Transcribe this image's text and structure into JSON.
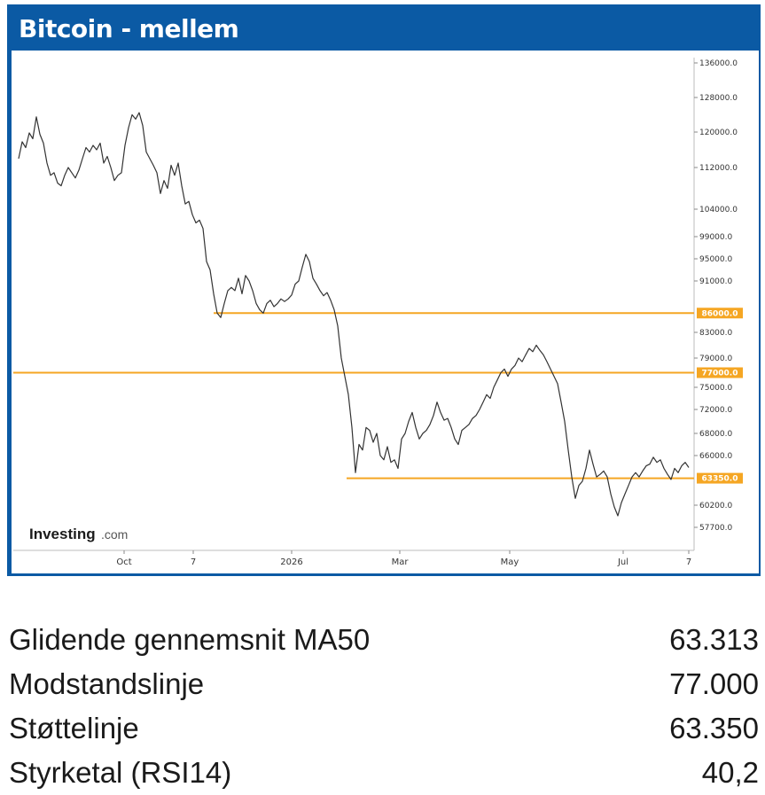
{
  "panel": {
    "title": "Bitcoin - mellem"
  },
  "brand": {
    "name": "Investing",
    "suffix": ".com"
  },
  "chart_data": {
    "type": "line",
    "title": "Bitcoin - mellem",
    "xlabel": "",
    "ylabel": "",
    "x_ticks": [
      "Oct",
      "7",
      "2026",
      "Mar",
      "May",
      "Jul",
      "7"
    ],
    "y_ticks": [
      136000,
      128000,
      120000,
      112000,
      104000,
      99000,
      95000,
      91000,
      83000,
      79000,
      75000,
      72000,
      68000,
      66000,
      60200,
      57700
    ],
    "y_tick_labels": [
      "136000.0",
      "128000.0",
      "120000.0",
      "112000.0",
      "104000.0",
      "99000.0",
      "95000.0",
      "91000.0",
      "83000.0",
      "79000.0",
      "75000.0",
      "72000.0",
      "68000.0",
      "66000.0",
      "60200.0",
      "57700.0"
    ],
    "levels": [
      {
        "value": 86000,
        "label": "86000.0",
        "color": "#f5a623"
      },
      {
        "value": 77000,
        "label": "77000.0",
        "color": "#f5a623"
      },
      {
        "value": 63350,
        "label": "63350.0",
        "color": "#f5a623"
      }
    ],
    "series": [
      {
        "color": "#333333",
        "values": [
          114000,
          117800,
          116500,
          119800,
          118500,
          123500,
          119500,
          117500,
          113000,
          110500,
          111000,
          109000,
          108500,
          110500,
          112000,
          111000,
          110000,
          111500,
          114000,
          116500,
          115500,
          117000,
          116000,
          117500,
          113000,
          114500,
          112000,
          109500,
          110500,
          111000,
          117000,
          121000,
          124000,
          123000,
          124500,
          121500,
          115500,
          114000,
          112500,
          111000,
          107000,
          109500,
          108000,
          112500,
          110500,
          113000,
          108500,
          105000,
          105500,
          103000,
          101500,
          102000,
          100500,
          94500,
          93000,
          89000,
          86000,
          85300,
          87500,
          89500,
          90000,
          89500,
          91500,
          89000,
          92000,
          91000,
          89500,
          87500,
          86500,
          86000,
          87500,
          88000,
          87000,
          87500,
          88200,
          87800,
          88200,
          88800,
          90500,
          91000,
          93500,
          95800,
          94500,
          91500,
          90500,
          89500,
          88700,
          89200,
          88000,
          86500,
          84000,
          79000,
          76500,
          74000,
          69000,
          64000,
          67000,
          66500,
          69000,
          68500,
          67200,
          68000,
          66000,
          65500,
          66800,
          65200,
          65500,
          64500,
          67500,
          68000,
          70000,
          71500,
          69000,
          67500,
          68000,
          68500,
          69500,
          71000,
          73000,
          71500,
          70200,
          70500,
          69000,
          67500,
          67000,
          68500,
          69000,
          69500,
          70500,
          71000,
          72000,
          73000,
          74000,
          73500,
          75000,
          76000,
          77000,
          77500,
          76500,
          77500,
          78000,
          79000,
          78500,
          79500,
          80500,
          80000,
          81000,
          80200,
          79500,
          78500,
          77500,
          76500,
          75500,
          73000,
          70000,
          66500,
          63500,
          61000,
          62500,
          63000,
          64500,
          66500,
          65000,
          63500,
          63800,
          64200,
          63500,
          61500,
          60000,
          59000,
          60500,
          61500,
          62500,
          63500,
          64000,
          63500,
          64200,
          64800,
          65000,
          65800,
          65200,
          65500,
          64500,
          63800,
          63200,
          64500,
          64000,
          64800,
          65200,
          64600
        ]
      }
    ]
  },
  "stats": [
    {
      "label": "Glidende gennemsnit MA50",
      "value": "63.313"
    },
    {
      "label": "Modstandslinje",
      "value": "77.000"
    },
    {
      "label": "Støttelinje",
      "value": "63.350"
    },
    {
      "label": "Styrketal (RSI14)",
      "value": "40,2"
    }
  ]
}
